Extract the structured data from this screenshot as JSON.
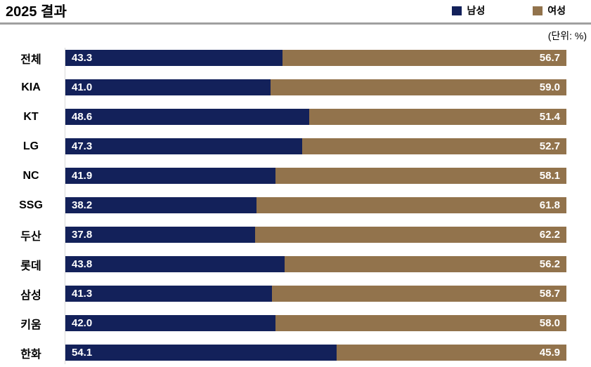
{
  "title": "2025 결과",
  "unit_label": "(단위: %)",
  "colors": {
    "male": "#13215A",
    "female": "#92734C",
    "axis_line": "#d9d9d9",
    "header_rule": "#a0a0a0",
    "value_text": "#ffffff",
    "label_text": "#000000"
  },
  "legend": {
    "male_label": "남성",
    "female_label": "여성"
  },
  "chart_data": {
    "type": "bar",
    "subtype": "horizontal-stacked",
    "title": "2025 결과",
    "unit": "%",
    "xlim": [
      0,
      100
    ],
    "grid": false,
    "legend_position": "top-right",
    "categories": [
      "전체",
      "KIA",
      "KT",
      "LG",
      "NC",
      "SSG",
      "두산",
      "롯데",
      "삼성",
      "키움",
      "한화"
    ],
    "series": [
      {
        "name": "남성",
        "color": "#13215A",
        "values": [
          43.3,
          41.0,
          48.6,
          47.3,
          41.9,
          38.2,
          37.8,
          43.8,
          41.3,
          42.0,
          54.1
        ]
      },
      {
        "name": "여성",
        "color": "#92734C",
        "values": [
          56.7,
          59.0,
          51.4,
          52.7,
          58.1,
          61.8,
          62.2,
          56.2,
          58.7,
          58.0,
          45.9
        ]
      }
    ]
  }
}
